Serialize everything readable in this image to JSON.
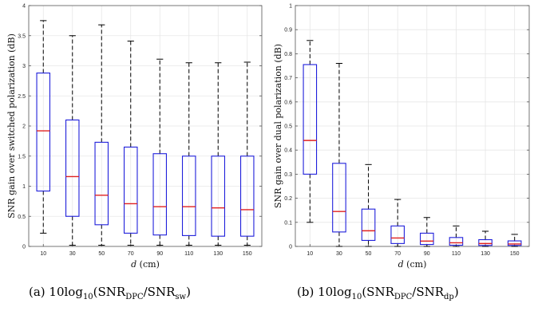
{
  "chart_data": [
    {
      "type": "box",
      "panel": "(a)",
      "xlabel_var": "d",
      "xlabel_unit": "(cm)",
      "ylabel": "SNR gain over switched polarization (dB)",
      "ylim": [
        0,
        4
      ],
      "yticks": [
        0,
        0.5,
        1,
        1.5,
        2,
        2.5,
        3,
        3.5,
        4
      ],
      "categories": [
        "10",
        "30",
        "50",
        "70",
        "90",
        "110",
        "130",
        "150"
      ],
      "boxes": [
        {
          "whisker_low": 0.22,
          "q1": 0.92,
          "median": 1.92,
          "q3": 2.88,
          "whisker_high": 3.75
        },
        {
          "whisker_low": 0.02,
          "q1": 0.5,
          "median": 1.16,
          "q3": 2.1,
          "whisker_high": 3.5
        },
        {
          "whisker_low": 0.02,
          "q1": 0.36,
          "median": 0.85,
          "q3": 1.73,
          "whisker_high": 3.68
        },
        {
          "whisker_low": 0.02,
          "q1": 0.22,
          "median": 0.71,
          "q3": 1.65,
          "whisker_high": 3.41
        },
        {
          "whisker_low": 0.02,
          "q1": 0.19,
          "median": 0.66,
          "q3": 1.54,
          "whisker_high": 3.11
        },
        {
          "whisker_low": 0.02,
          "q1": 0.18,
          "median": 0.66,
          "q3": 1.5,
          "whisker_high": 3.05
        },
        {
          "whisker_low": 0.02,
          "q1": 0.17,
          "median": 0.64,
          "q3": 1.5,
          "whisker_high": 3.05
        },
        {
          "whisker_low": 0.02,
          "q1": 0.17,
          "median": 0.61,
          "q3": 1.5,
          "whisker_high": 3.06
        }
      ],
      "grid": true,
      "colors": {
        "box": "#1f1fdb",
        "median": "#e02020",
        "whisker": "#000000"
      }
    },
    {
      "type": "box",
      "panel": "(b)",
      "xlabel_var": "d",
      "xlabel_unit": "(cm)",
      "ylabel": "SNR gain over dual polarization (dB)",
      "ylim": [
        0,
        1
      ],
      "yticks": [
        0,
        0.1,
        0.2,
        0.3,
        0.4,
        0.5,
        0.6,
        0.7,
        0.8,
        0.9,
        1
      ],
      "categories": [
        "10",
        "30",
        "50",
        "70",
        "90",
        "110",
        "130",
        "150"
      ],
      "boxes": [
        {
          "whisker_low": 0.1,
          "q1": 0.3,
          "median": 0.44,
          "q3": 0.755,
          "whisker_high": 0.855
        },
        {
          "whisker_low": 0.0,
          "q1": 0.06,
          "median": 0.145,
          "q3": 0.345,
          "whisker_high": 0.76
        },
        {
          "whisker_low": 0.0,
          "q1": 0.025,
          "median": 0.065,
          "q3": 0.155,
          "whisker_high": 0.34
        },
        {
          "whisker_low": 0.0,
          "q1": 0.012,
          "median": 0.035,
          "q3": 0.085,
          "whisker_high": 0.195
        },
        {
          "whisker_low": 0.0,
          "q1": 0.008,
          "median": 0.022,
          "q3": 0.055,
          "whisker_high": 0.12
        },
        {
          "whisker_low": 0.0,
          "q1": 0.005,
          "median": 0.015,
          "q3": 0.037,
          "whisker_high": 0.085
        },
        {
          "whisker_low": 0.0,
          "q1": 0.004,
          "median": 0.012,
          "q3": 0.028,
          "whisker_high": 0.063
        },
        {
          "whisker_low": 0.0,
          "q1": 0.004,
          "median": 0.01,
          "q3": 0.023,
          "whisker_high": 0.05
        }
      ],
      "grid": true,
      "colors": {
        "box": "#1f1fdb",
        "median": "#e02020",
        "whisker": "#000000"
      }
    }
  ],
  "captions": {
    "a": {
      "prefix": "(a) 10log",
      "log_sub": "10",
      "open": "(SNR",
      "num_sub": "DPC",
      "slash": "/SNR",
      "den_sub": "sw",
      "close": ")"
    },
    "b": {
      "prefix": "(b) 10log",
      "log_sub": "10",
      "open": "(SNR",
      "num_sub": "DPC",
      "slash": "/SNR",
      "den_sub": "dp",
      "close": ")"
    }
  }
}
